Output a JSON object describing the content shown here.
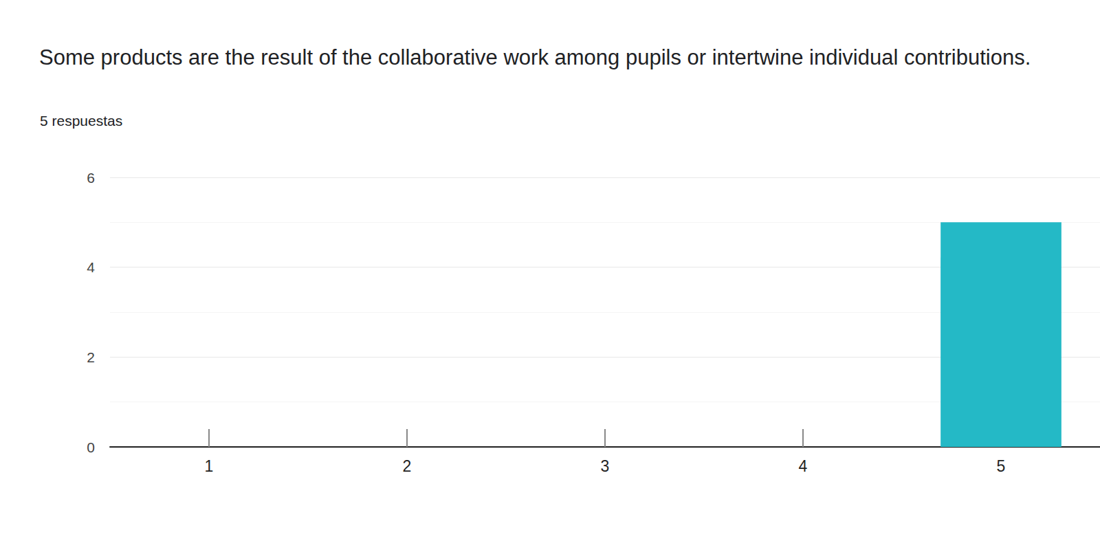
{
  "chart_data": {
    "type": "bar",
    "title": "Some products are the result of the collaborative work among pupils or intertwine individual contributions.",
    "subtitle": "5 respuestas",
    "categories": [
      "1",
      "2",
      "3",
      "4",
      "5"
    ],
    "values": [
      0,
      0,
      0,
      0,
      5
    ],
    "color": "#24b9c6",
    "ylim": [
      0,
      6
    ],
    "yticks": [
      0,
      2,
      4,
      6
    ],
    "grid": true
  }
}
